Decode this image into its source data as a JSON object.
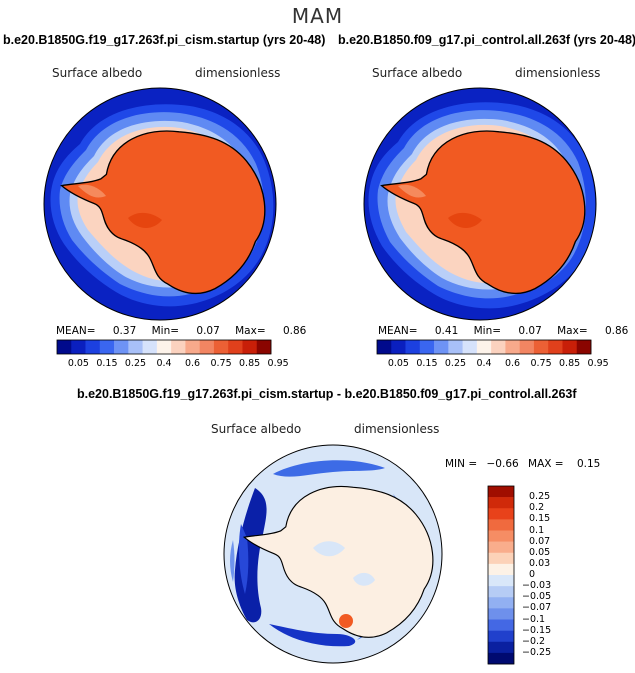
{
  "figure": {
    "season": "MAM",
    "variable": "Surface albedo",
    "units": "dimensionless"
  },
  "panel_left": {
    "title": "b.e20.B1850G.f19_g17.263f.pi_cism.startup (yrs 20-48)",
    "mean_label": "MEAN=",
    "mean": "0.37",
    "min_label": "Min=",
    "min": "0.07",
    "max_label": "Max=",
    "max": "0.86"
  },
  "panel_right": {
    "title": "b.e20.B1850.f09_g17.pi_control.all.263f (yrs 20-48)",
    "mean_label": "MEAN=",
    "mean": "0.41",
    "min_label": "Min=",
    "min": "0.07",
    "max_label": "Max=",
    "max": "0.86"
  },
  "panel_diff": {
    "title": "b.e20.B1850G.f19_g17.263f.pi_cism.startup - b.e20.B1850.f09_g17.pi_control.all.263f",
    "min_label": "MIN =",
    "min": "−0.66",
    "max_label": "MAX =",
    "max": "0.15"
  },
  "colorbar_abs": {
    "labels": [
      "0.05",
      "0.15",
      "0.25",
      "0.4",
      "0.6",
      "0.75",
      "0.85",
      "0.95"
    ],
    "colors": [
      "#000a8c",
      "#0a1fbf",
      "#1c40e0",
      "#3a66f0",
      "#6e93f5",
      "#a8c0f8",
      "#d6e2fb",
      "#fdf3ea",
      "#fbd2bf",
      "#f8a98b",
      "#f28562",
      "#ec6035",
      "#e0401c",
      "#c81f08",
      "#8a0500"
    ]
  },
  "colorbar_diff": {
    "labels": [
      "0.25",
      "0.2",
      "0.15",
      "0.1",
      "0.07",
      "0.05",
      "0.03",
      "0",
      "−0.03",
      "−0.05",
      "−0.07",
      "−0.1",
      "−0.15",
      "−0.2",
      "−0.25"
    ],
    "colors": [
      "#a00e00",
      "#d02a0a",
      "#e8421a",
      "#f06a3e",
      "#f68d64",
      "#f9ad8c",
      "#fcd2b8",
      "#fdf2e6",
      "#d9e7f9",
      "#b6ccf5",
      "#92b0f2",
      "#6e90ec",
      "#4468e4",
      "#2040cc",
      "#0a20a0",
      "#000a70"
    ]
  }
}
